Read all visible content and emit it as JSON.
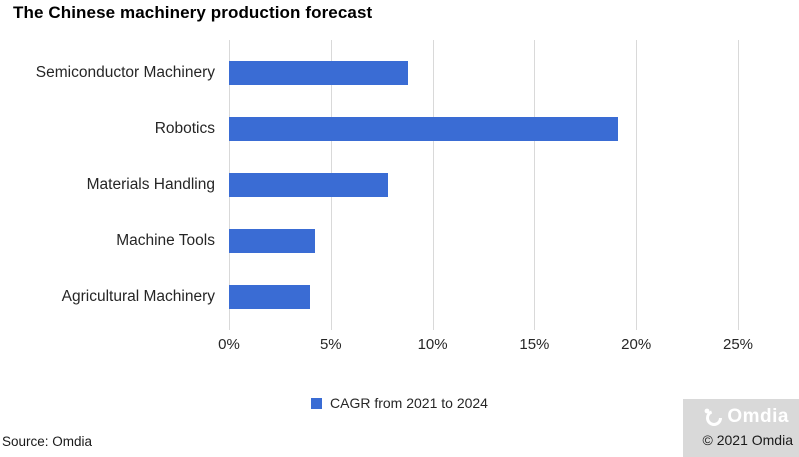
{
  "title": "The Chinese machinery production forecast",
  "chart_data": {
    "type": "bar",
    "orientation": "horizontal",
    "title": "The Chinese machinery production forecast",
    "categories": [
      "Semiconductor Machinery",
      "Robotics",
      "Materials Handling",
      "Machine Tools",
      "Agricultural Machinery"
    ],
    "series": [
      {
        "name": "CAGR from 2021 to 2024",
        "values": [
          8.8,
          19.1,
          7.8,
          4.2,
          4.0
        ]
      }
    ],
    "unit": "%",
    "xlabel": "",
    "ylabel": "",
    "xlim": [
      0,
      25
    ],
    "x_ticks": [
      "0%",
      "5%",
      "10%",
      "15%",
      "20%",
      "25%"
    ],
    "x_tick_values": [
      0,
      5,
      10,
      15,
      20,
      25
    ],
    "grid": "vertical",
    "legend_position": "bottom",
    "bar_color": "#3a6cd4",
    "gridline_color": "#d9d9d9"
  },
  "legend": {
    "label": "CAGR from 2021 to 2024",
    "swatch_color": "#3a6cd4"
  },
  "footer": {
    "source": "Source: Omdia",
    "copyright": "© 2021 Omdia",
    "brand": "Omdia",
    "badge_background": "#d9d9d9"
  }
}
